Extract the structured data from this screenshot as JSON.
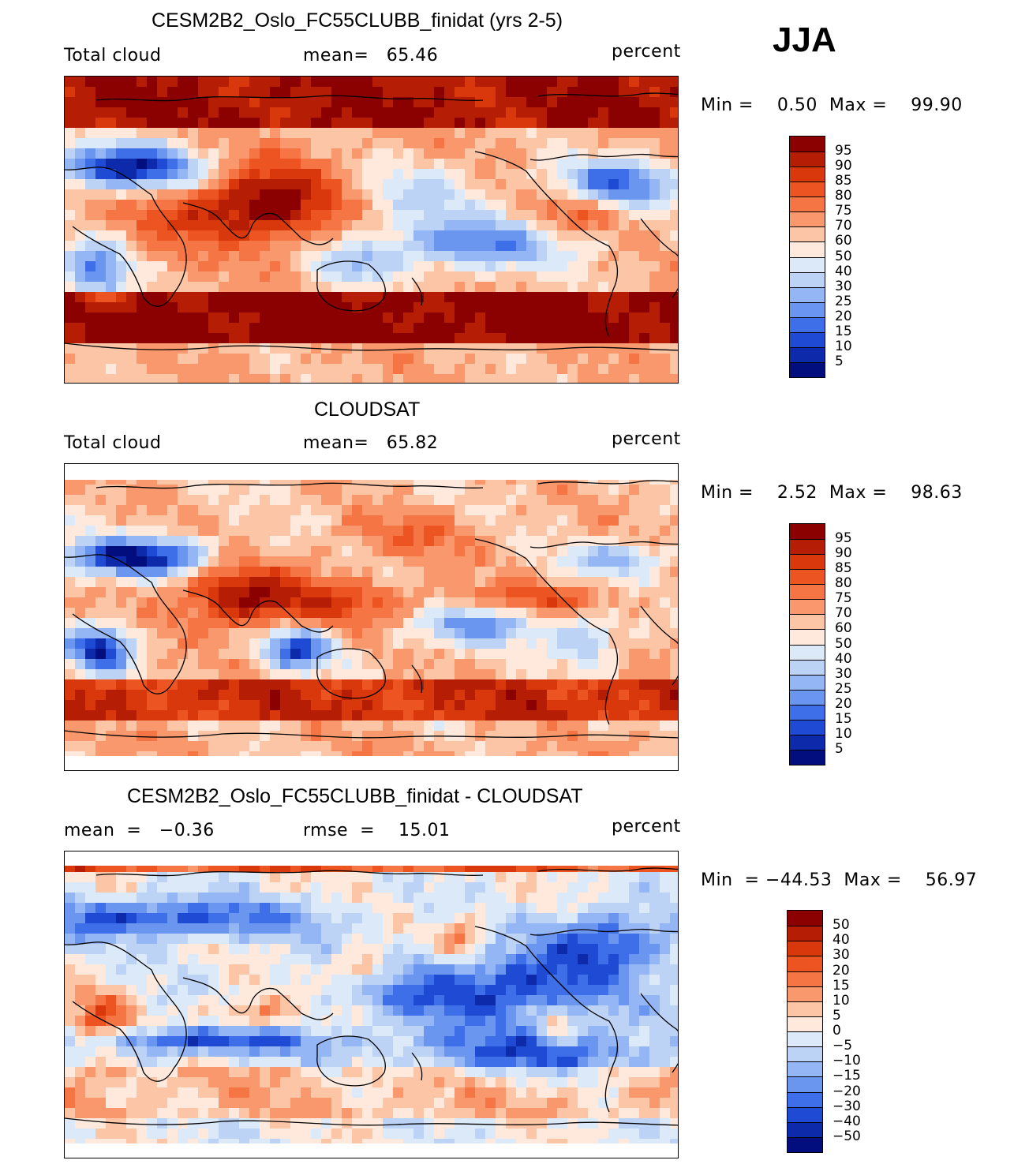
{
  "season": "JJA",
  "panels": [
    {
      "title": "CESM2B2_Oslo_FC55CLUBB_finidat (yrs 2-5)",
      "left_label": "Total cloud",
      "mid_label": "mean=   65.46",
      "units": "percent",
      "min_max": "Min =    0.50  Max =    99.90",
      "legend_labels": [
        "95",
        "90",
        "85",
        "80",
        "75",
        "70",
        "60",
        "50",
        "40",
        "30",
        "25",
        "20",
        "15",
        "10",
        "5"
      ],
      "map_kind": "model"
    },
    {
      "title": "CLOUDSAT",
      "left_label": "Total cloud",
      "mid_label": "mean=   65.82",
      "units": "percent",
      "min_max": "Min =    2.52  Max =    98.63",
      "legend_labels": [
        "95",
        "90",
        "85",
        "80",
        "75",
        "70",
        "60",
        "50",
        "40",
        "30",
        "25",
        "20",
        "15",
        "10",
        "5"
      ],
      "map_kind": "obs"
    },
    {
      "title": "CESM2B2_Oslo_FC55CLUBB_finidat - CLOUDSAT",
      "left_label": "mean  =   −0.36",
      "mid_label": "rmse  =    15.01",
      "units": "percent",
      "min_max": "Min  = −44.53  Max =    56.97",
      "legend_labels": [
        "50",
        "40",
        "30",
        "20",
        "15",
        "10",
        "5",
        "0",
        "−5",
        "−10",
        "−15",
        "−20",
        "−30",
        "−40",
        "−50"
      ],
      "map_kind": "diff"
    }
  ],
  "colors": {
    "palette": [
      "#8b0000",
      "#b51e05",
      "#d8380c",
      "#ec5522",
      "#f57544",
      "#f9986d",
      "#fcc5a5",
      "#fee9dc",
      "#dce9f8",
      "#bdd3f6",
      "#94b6f4",
      "#6a96f0",
      "#3f6fe8",
      "#1f4ad3",
      "#0d2aaa",
      "#020d7e"
    ],
    "coast": "#000000"
  }
}
